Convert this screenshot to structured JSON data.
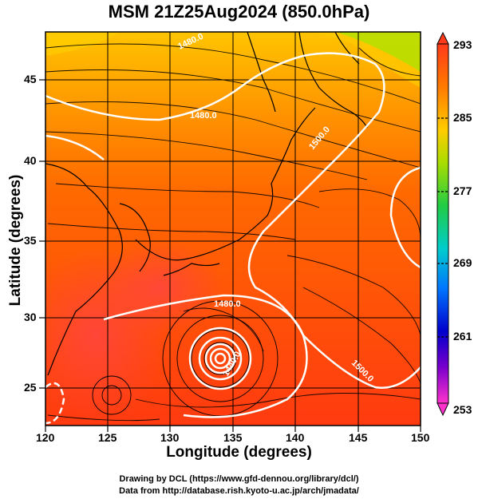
{
  "title": "MSM 21Z25Aug2024 (850.0hPa)",
  "chart_data": {
    "type": "map",
    "xlabel": "Longitude (degrees)",
    "ylabel": "Latitude  (degrees)",
    "xlim": [
      120,
      150
    ],
    "ylim": [
      22.5,
      48
    ],
    "x_ticks": [
      "120",
      "125",
      "130",
      "135",
      "140",
      "145",
      "150"
    ],
    "y_ticks": [
      "25",
      "30",
      "35",
      "40",
      "45"
    ],
    "colorbar": {
      "labels": [
        "293",
        "285",
        "277",
        "269",
        "261",
        "253"
      ],
      "range": [
        253,
        293
      ],
      "colors": [
        "#ff1a1a",
        "#ff6600",
        "#ffcc00",
        "#ccee00",
        "#33cc33",
        "#00cccc",
        "#0066ff",
        "#0000cc",
        "#6600cc",
        "#ff33cc"
      ]
    },
    "contour_labels": [
      "1480.0",
      "1480.0",
      "1480.0",
      "1500.0",
      "1500.0",
      "1440.0"
    ],
    "typhoon_center": {
      "lon": 134.3,
      "lat": 27.3
    }
  },
  "credits": {
    "line1": "Drawing by DCL (https://www.gfd-dennou.org/library/dcl/)",
    "line2": "Data from http://database.rish.kyoto-u.ac.jp/arch/jmadata/"
  }
}
